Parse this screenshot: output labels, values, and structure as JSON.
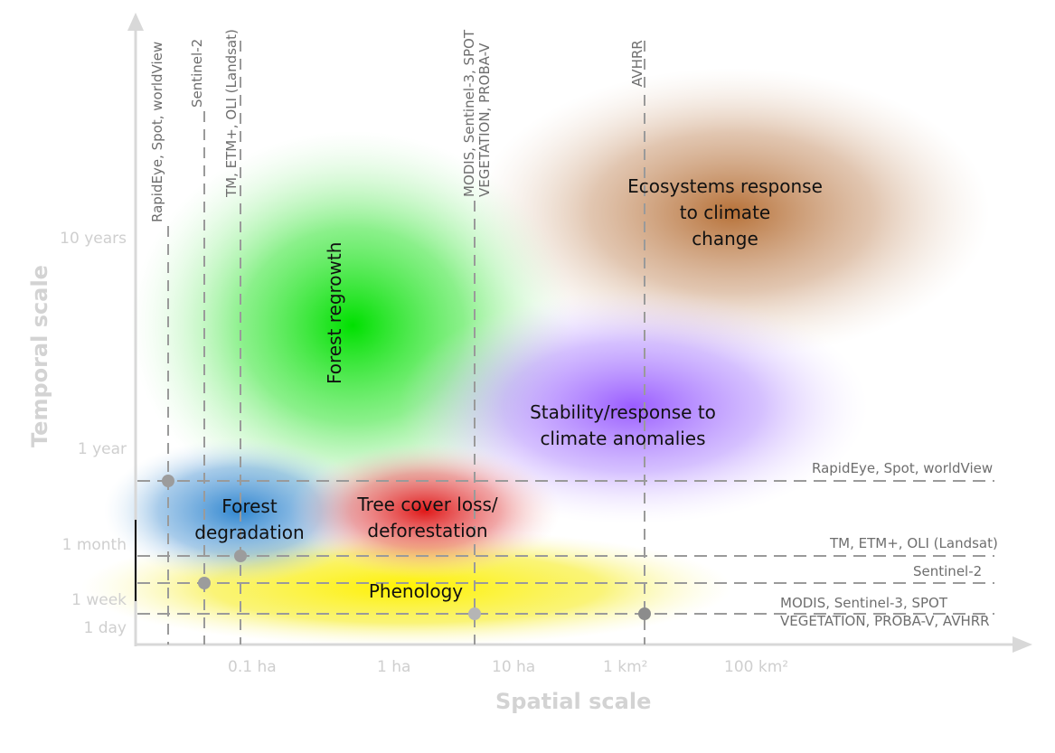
{
  "axes": {
    "x_title": "Spatial scale",
    "y_title": "Temporal scale",
    "x_ticks": [
      "0.1 ha",
      "1 ha",
      "10 ha",
      "1 km²",
      "100 km²"
    ],
    "y_ticks": [
      "10 years",
      "1 year",
      "1 month",
      "1 week",
      "1 day"
    ]
  },
  "sensors_vertical": [
    {
      "line1": "RapidEye, Spot, worldView",
      "line2": ""
    },
    {
      "line1": "Sentinel-2",
      "line2": ""
    },
    {
      "line1": "TM, ETM+, OLI (Landsat)",
      "line2": ""
    },
    {
      "line1": "MODIS, Sentinel-3, SPOT",
      "line2": "VEGETATION, PROBA-V"
    },
    {
      "line1": "AVHRR",
      "line2": ""
    }
  ],
  "sensors_horizontal": [
    {
      "line1": "RapidEye, Spot,  worldView",
      "line2": ""
    },
    {
      "line1": "TM, ETM+, OLI (Landsat)",
      "line2": ""
    },
    {
      "line1": "Sentinel-2",
      "line2": ""
    },
    {
      "line1": "MODIS, Sentinel-3, SPOT",
      "line2": "VEGETATION, PROBA-V, AVHRR"
    }
  ],
  "processes": {
    "ecosystems": {
      "line1": "Ecosystems response",
      "line2": "to climate",
      "line3": "change",
      "color": "#b8763f"
    },
    "forest_regrowth": {
      "label": "Forest regrowth",
      "color": "#22e022"
    },
    "stability": {
      "line1": "Stability/response to",
      "line2": "climate anomalies",
      "color": "#a66cff"
    },
    "forest_degradation": {
      "line1": "Forest",
      "line2": "degradation",
      "color": "#3a8fd6"
    },
    "tree_cover_loss": {
      "line1": "Tree cover loss/",
      "line2": "deforestation",
      "color": "#e03030"
    },
    "phenology": {
      "label": "Phenology",
      "color": "#f5f000"
    }
  }
}
